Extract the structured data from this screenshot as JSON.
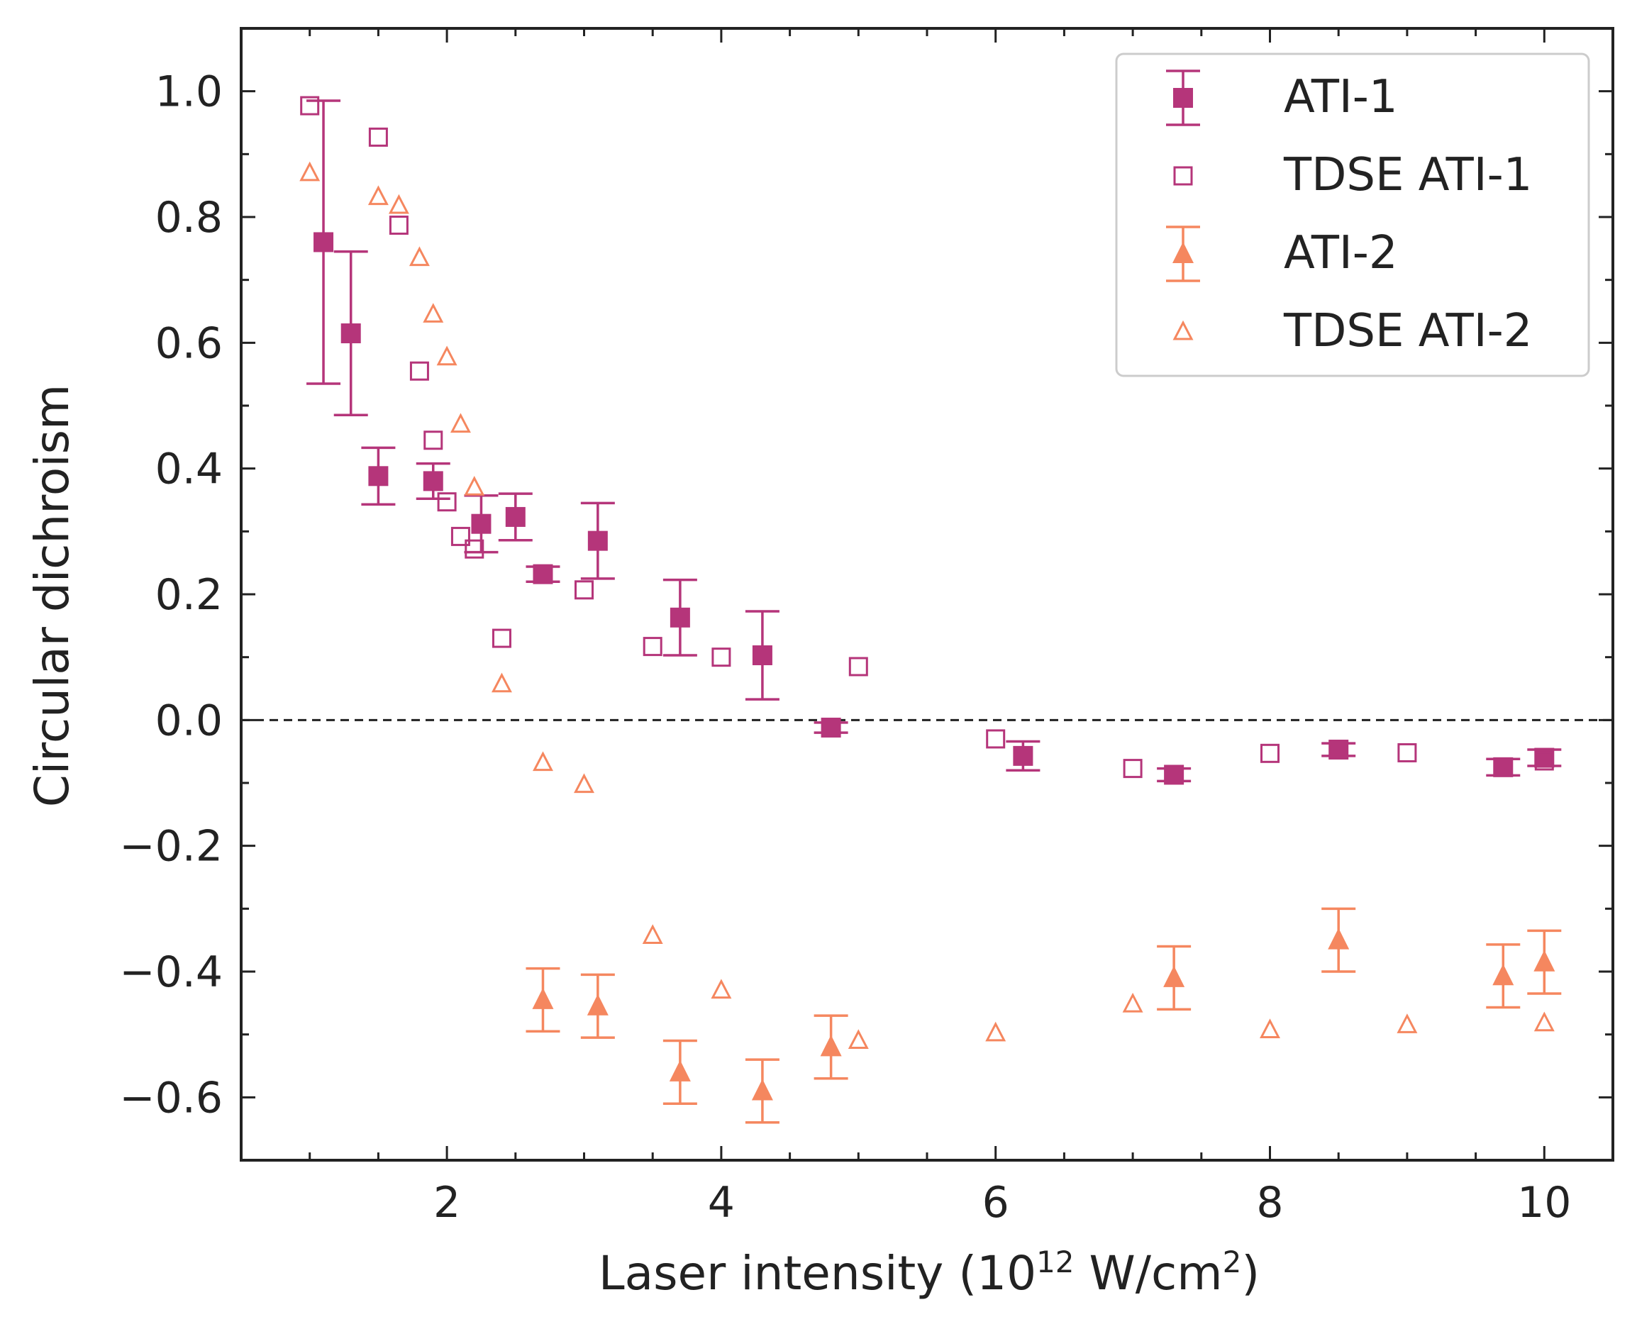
{
  "chart_data": {
    "type": "scatter",
    "xlabel_parts": {
      "main": "Laser intensity (10",
      "exp": "12",
      "unit": " W/cm",
      "unit_exp": "2",
      "close": ")"
    },
    "ylabel": "Circular dichroism",
    "xlim": [
      0.5,
      10.5
    ],
    "ylim": [
      -0.7,
      1.1
    ],
    "x_ticks": [
      2,
      4,
      6,
      8,
      10
    ],
    "x_tick_labels": [
      "2",
      "4",
      "6",
      "8",
      "10"
    ],
    "y_ticks": [
      1.0,
      0.8,
      0.6,
      0.4,
      0.2,
      0.0,
      -0.2,
      -0.4,
      -0.6
    ],
    "y_tick_labels": [
      "1.0",
      "0.8",
      "0.6",
      "0.4",
      "0.2",
      "0.0",
      "−0.2",
      "−0.4",
      "−0.6"
    ],
    "zero_line": true,
    "legend_position": "top-right",
    "series": [
      {
        "name": "ATI-1",
        "marker": "square-filled",
        "color": "#b5357a",
        "points": [
          {
            "x": 1.1,
            "y": 0.76,
            "err": 0.225
          },
          {
            "x": 1.3,
            "y": 0.615,
            "err": 0.13
          },
          {
            "x": 1.5,
            "y": 0.388,
            "err": 0.045
          },
          {
            "x": 1.9,
            "y": 0.38,
            "err": 0.028
          },
          {
            "x": 2.25,
            "y": 0.312,
            "err": 0.045
          },
          {
            "x": 2.5,
            "y": 0.323,
            "err": 0.037
          },
          {
            "x": 2.7,
            "y": 0.232,
            "err": 0.012
          },
          {
            "x": 3.1,
            "y": 0.285,
            "err": 0.06
          },
          {
            "x": 3.7,
            "y": 0.163,
            "err": 0.06
          },
          {
            "x": 4.3,
            "y": 0.103,
            "err": 0.07
          },
          {
            "x": 4.8,
            "y": -0.012,
            "err": 0.008
          },
          {
            "x": 6.2,
            "y": -0.057,
            "err": 0.023
          },
          {
            "x": 7.3,
            "y": -0.087,
            "err": 0.01
          },
          {
            "x": 8.5,
            "y": -0.047,
            "err": 0.01
          },
          {
            "x": 9.7,
            "y": -0.075,
            "err": 0.013
          },
          {
            "x": 10.0,
            "y": -0.06,
            "err": 0.013
          }
        ]
      },
      {
        "name": "TDSE ATI-1",
        "marker": "square-open",
        "color": "#b5357a",
        "points": [
          {
            "x": 1.0,
            "y": 0.977
          },
          {
            "x": 1.5,
            "y": 0.927
          },
          {
            "x": 1.65,
            "y": 0.787
          },
          {
            "x": 1.8,
            "y": 0.555
          },
          {
            "x": 1.9,
            "y": 0.445
          },
          {
            "x": 2.0,
            "y": 0.347
          },
          {
            "x": 2.1,
            "y": 0.292
          },
          {
            "x": 2.2,
            "y": 0.272
          },
          {
            "x": 2.4,
            "y": 0.13
          },
          {
            "x": 3.0,
            "y": 0.207
          },
          {
            "x": 3.5,
            "y": 0.117
          },
          {
            "x": 4.0,
            "y": 0.1
          },
          {
            "x": 5.0,
            "y": 0.085
          },
          {
            "x": 6.0,
            "y": -0.03
          },
          {
            "x": 7.0,
            "y": -0.077
          },
          {
            "x": 8.0,
            "y": -0.053
          },
          {
            "x": 9.0,
            "y": -0.052
          },
          {
            "x": 10.0,
            "y": -0.065
          }
        ]
      },
      {
        "name": "ATI-2",
        "marker": "triangle-filled",
        "color": "#f5875f",
        "points": [
          {
            "x": 2.7,
            "y": -0.445,
            "err": 0.05
          },
          {
            "x": 3.1,
            "y": -0.455,
            "err": 0.05
          },
          {
            "x": 3.7,
            "y": -0.56,
            "err": 0.05
          },
          {
            "x": 4.3,
            "y": -0.59,
            "err": 0.05
          },
          {
            "x": 4.8,
            "y": -0.52,
            "err": 0.05
          },
          {
            "x": 7.3,
            "y": -0.41,
            "err": 0.05
          },
          {
            "x": 8.5,
            "y": -0.35,
            "err": 0.05
          },
          {
            "x": 9.7,
            "y": -0.407,
            "err": 0.05
          },
          {
            "x": 10.0,
            "y": -0.385,
            "err": 0.05
          }
        ]
      },
      {
        "name": "TDSE ATI-2",
        "marker": "triangle-open",
        "color": "#f5875f",
        "points": [
          {
            "x": 1.0,
            "y": 0.87
          },
          {
            "x": 1.5,
            "y": 0.832
          },
          {
            "x": 1.65,
            "y": 0.818
          },
          {
            "x": 1.8,
            "y": 0.735
          },
          {
            "x": 1.9,
            "y": 0.645
          },
          {
            "x": 2.0,
            "y": 0.577
          },
          {
            "x": 2.1,
            "y": 0.47
          },
          {
            "x": 2.2,
            "y": 0.37
          },
          {
            "x": 2.4,
            "y": 0.057
          },
          {
            "x": 2.7,
            "y": -0.068
          },
          {
            "x": 3.0,
            "y": -0.103
          },
          {
            "x": 3.5,
            "y": -0.343
          },
          {
            "x": 4.0,
            "y": -0.43
          },
          {
            "x": 5.0,
            "y": -0.51
          },
          {
            "x": 6.0,
            "y": -0.498
          },
          {
            "x": 7.0,
            "y": -0.452
          },
          {
            "x": 8.0,
            "y": -0.493
          },
          {
            "x": 9.0,
            "y": -0.485
          },
          {
            "x": 10.0,
            "y": -0.482
          }
        ]
      }
    ]
  }
}
